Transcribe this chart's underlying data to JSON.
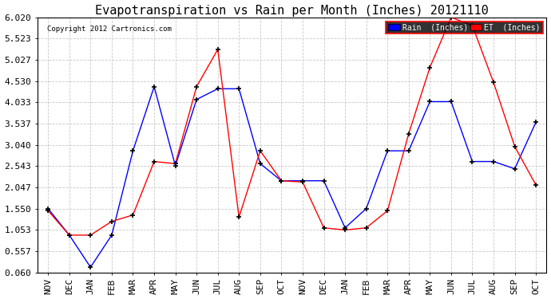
{
  "title": "Evapotranspiration vs Rain per Month (Inches) 20121110",
  "copyright": "Copyright 2012 Cartronics.com",
  "months": [
    "NOV",
    "DEC",
    "JAN",
    "FEB",
    "MAR",
    "APR",
    "MAY",
    "JUN",
    "JUL",
    "AUG",
    "SEP",
    "OCT",
    "NOV",
    "DEC",
    "JAN",
    "FEB",
    "MAR",
    "APR",
    "MAY",
    "JUN",
    "JUL",
    "AUG",
    "SEP",
    "OCT"
  ],
  "rain": [
    1.55,
    0.93,
    0.18,
    0.93,
    2.9,
    4.4,
    2.55,
    4.1,
    4.35,
    4.35,
    2.6,
    2.2,
    2.2,
    2.2,
    1.1,
    1.55,
    2.9,
    2.9,
    4.05,
    4.05,
    2.65,
    2.65,
    2.48,
    3.57
  ],
  "et": [
    1.5,
    0.93,
    0.93,
    1.25,
    1.4,
    2.65,
    2.6,
    4.4,
    5.27,
    1.35,
    2.9,
    2.2,
    2.17,
    1.1,
    1.05,
    1.1,
    1.5,
    3.3,
    4.85,
    6.02,
    5.83,
    4.5,
    3.0,
    2.1
  ],
  "rain_color": "#0000ff",
  "et_color": "#ff0000",
  "bg_color": "#ffffff",
  "grid_color": "#c8c8c8",
  "yticks": [
    0.06,
    0.557,
    1.053,
    1.55,
    2.047,
    2.543,
    3.04,
    3.537,
    4.033,
    4.53,
    5.027,
    5.523,
    6.02
  ],
  "ylim": [
    0.06,
    6.02
  ],
  "title_fontsize": 11,
  "tick_fontsize": 8
}
